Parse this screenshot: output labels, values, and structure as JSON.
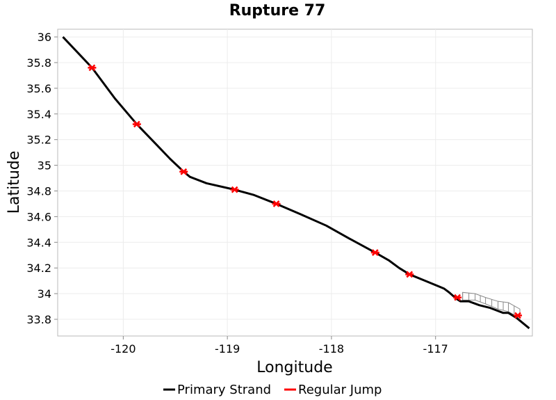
{
  "chart_data": {
    "type": "line",
    "title": "Rupture 77",
    "xlabel": "Longitude",
    "ylabel": "Latitude",
    "xlim": [
      -120.63,
      -116.07
    ],
    "ylim": [
      33.67,
      36.06
    ],
    "x_ticks": [
      -120,
      -119,
      -118,
      -117
    ],
    "x_tick_labels": [
      "-120",
      "-119",
      "-118",
      "-117"
    ],
    "y_ticks": [
      33.8,
      34.0,
      34.2,
      34.4,
      34.6,
      34.8,
      35.0,
      35.2,
      35.4,
      35.6,
      35.8,
      36.0
    ],
    "y_tick_labels": [
      "33.8",
      "34",
      "34.2",
      "34.4",
      "34.6",
      "34.8",
      "35",
      "35.2",
      "35.4",
      "35.6",
      "35.8",
      "36"
    ],
    "grid": true,
    "legend_position": "bottom",
    "series": [
      {
        "name": "Primary Strand",
        "color": "#000000",
        "x": [
          -120.58,
          -120.3,
          -120.08,
          -119.87,
          -119.68,
          -119.55,
          -119.42,
          -119.36,
          -119.2,
          -118.93,
          -118.75,
          -118.53,
          -118.3,
          -118.05,
          -117.83,
          -117.58,
          -117.45,
          -117.35,
          -117.25,
          -117.1,
          -116.92,
          -116.87,
          -116.8,
          -116.76,
          -116.68,
          -116.58,
          -116.48,
          -116.35,
          -116.3,
          -116.22,
          -116.1
        ],
        "y": [
          36.0,
          35.76,
          35.52,
          35.32,
          35.16,
          35.05,
          34.95,
          34.91,
          34.86,
          34.81,
          34.77,
          34.7,
          34.62,
          34.53,
          34.43,
          34.32,
          34.26,
          34.2,
          34.15,
          34.1,
          34.04,
          34.01,
          33.96,
          33.94,
          33.94,
          33.91,
          33.89,
          33.85,
          33.85,
          33.81,
          33.73
        ]
      }
    ],
    "jumps": {
      "name": "Regular Jump",
      "color": "#ff0000",
      "points": [
        {
          "x": -120.3,
          "y": 35.76
        },
        {
          "x": -119.87,
          "y": 35.32
        },
        {
          "x": -119.42,
          "y": 34.95
        },
        {
          "x": -118.93,
          "y": 34.81
        },
        {
          "x": -118.53,
          "y": 34.7
        },
        {
          "x": -117.58,
          "y": 34.32
        },
        {
          "x": -117.25,
          "y": 34.15
        },
        {
          "x": -116.79,
          "y": 33.97
        },
        {
          "x": -116.21,
          "y": 33.83
        }
      ]
    },
    "rupture_surface": {
      "color": "#888888",
      "top": {
        "x": [
          -116.74,
          -116.62,
          -116.52,
          -116.4,
          -116.3,
          -116.19
        ],
        "y": [
          34.01,
          34.0,
          33.97,
          33.94,
          33.93,
          33.88
        ]
      },
      "bottom": {
        "x": [
          -116.74,
          -116.62,
          -116.52,
          -116.4,
          -116.3,
          -116.19
        ],
        "y": [
          33.95,
          33.95,
          33.92,
          33.88,
          33.86,
          33.81
        ]
      }
    }
  }
}
